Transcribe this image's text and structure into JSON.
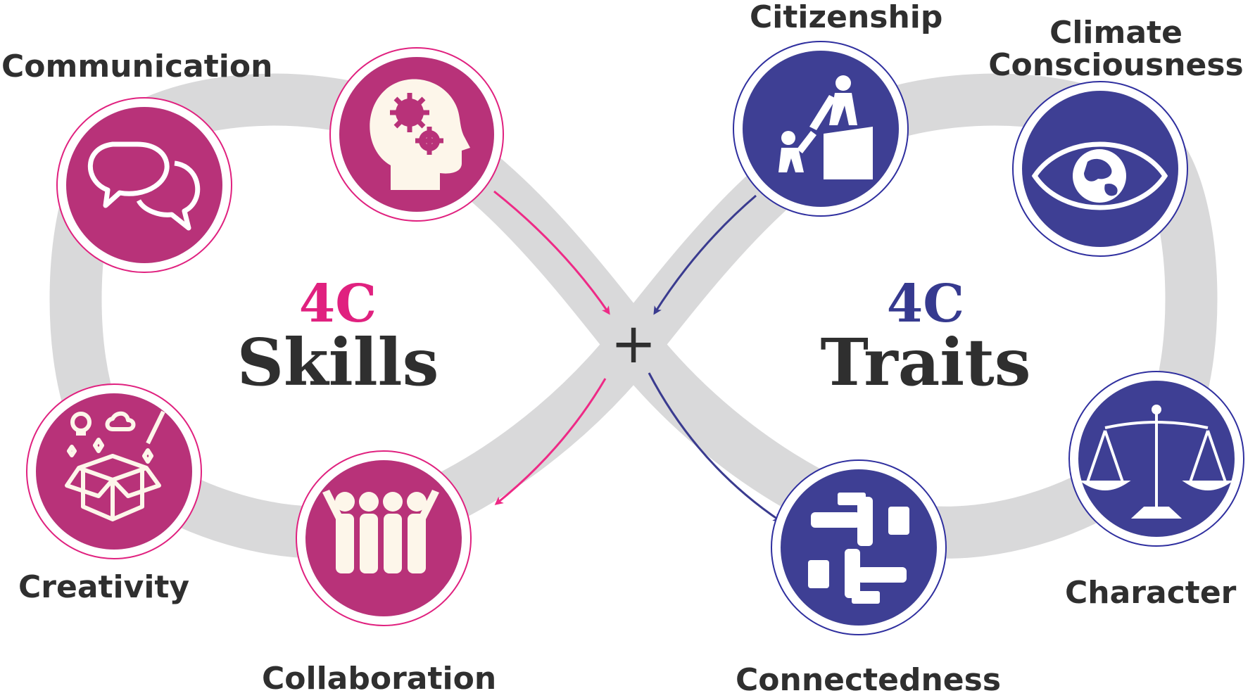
{
  "colors": {
    "skills_fill": "#b83279",
    "skills_ring": "#e0217f",
    "skills_arrow": "#ee2a86",
    "traits_fill": "#3e3f94",
    "traits_ring": "#2f2f9f",
    "traits_arrow": "#3a3b8f",
    "track": "#d9d9da",
    "text": "#2f2f2f",
    "icon": "#fdf6ea"
  },
  "skills": {
    "prefix": "4C",
    "title": "Skills",
    "nodes": [
      {
        "id": "communication",
        "label": "Communication",
        "icon": "speech-bubbles-icon"
      },
      {
        "id": "critical-thinking",
        "label": "",
        "icon": "head-gears-icon"
      },
      {
        "id": "creativity",
        "label": "Creativity",
        "icon": "idea-box-icon"
      },
      {
        "id": "collaboration",
        "label": "Collaboration",
        "icon": "team-group-icon"
      }
    ]
  },
  "traits": {
    "prefix": "4C",
    "title": "Traits",
    "nodes": [
      {
        "id": "citizenship",
        "label": "Citizenship",
        "icon": "helping-climb-icon"
      },
      {
        "id": "climate-consciousness",
        "label": "Climate\nConsciousness",
        "icon": "globe-eye-icon"
      },
      {
        "id": "character",
        "label": "Character",
        "icon": "balance-scale-icon"
      },
      {
        "id": "connectedness",
        "label": "Connectedness",
        "icon": "joined-hands-icon"
      }
    ]
  },
  "center_symbol": "+"
}
